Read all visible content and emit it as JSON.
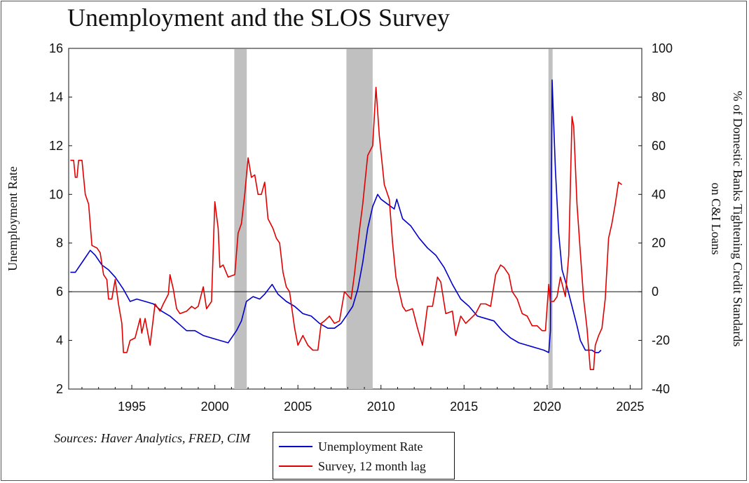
{
  "title": "Unemployment and the SLOS Survey",
  "source_text": "Sources:  Haver Analytics, FRED, CIM",
  "chart_data": {
    "type": "line",
    "title": "Unemployment and the SLOS Survey",
    "xlim": [
      1991.2,
      2025.7
    ],
    "x_ticks": [
      1995,
      2000,
      2005,
      2010,
      2015,
      2020,
      2025
    ],
    "left_axis": {
      "label": "Unemployment Rate",
      "lim": [
        2,
        16
      ],
      "ticks": [
        2,
        4,
        6,
        8,
        10,
        12,
        14,
        16
      ]
    },
    "right_axis": {
      "label_line1": "% of Domestic Banks Tightening Credit Standards",
      "label_line2": "on C&I Loans",
      "lim": [
        -40,
        100
      ],
      "ticks": [
        -40,
        -20,
        0,
        20,
        40,
        60,
        80,
        100
      ]
    },
    "zero_line": 0,
    "recessions": [
      [
        2001.17,
        2001.92
      ],
      [
        2007.92,
        2009.5
      ],
      [
        2020.08,
        2020.33
      ]
    ],
    "legend_position": "bottom-center",
    "series": [
      {
        "name": "Unemployment Rate",
        "axis": "left",
        "color": "#0000cc",
        "points": [
          [
            1991.3,
            6.8
          ],
          [
            1991.6,
            6.8
          ],
          [
            1992.0,
            7.2
          ],
          [
            1992.5,
            7.7
          ],
          [
            1992.8,
            7.5
          ],
          [
            1993.2,
            7.1
          ],
          [
            1993.6,
            6.9
          ],
          [
            1994.0,
            6.6
          ],
          [
            1994.5,
            6.1
          ],
          [
            1994.9,
            5.6
          ],
          [
            1995.3,
            5.7
          ],
          [
            1995.8,
            5.6
          ],
          [
            1996.3,
            5.5
          ],
          [
            1996.8,
            5.2
          ],
          [
            1997.3,
            5.0
          ],
          [
            1997.8,
            4.7
          ],
          [
            1998.3,
            4.4
          ],
          [
            1998.8,
            4.4
          ],
          [
            1999.3,
            4.2
          ],
          [
            1999.8,
            4.1
          ],
          [
            2000.3,
            4.0
          ],
          [
            2000.8,
            3.9
          ],
          [
            2001.0,
            4.1
          ],
          [
            2001.3,
            4.4
          ],
          [
            2001.6,
            4.8
          ],
          [
            2001.9,
            5.6
          ],
          [
            2002.3,
            5.8
          ],
          [
            2002.7,
            5.7
          ],
          [
            2003.0,
            5.9
          ],
          [
            2003.45,
            6.3
          ],
          [
            2003.8,
            5.9
          ],
          [
            2004.3,
            5.6
          ],
          [
            2004.8,
            5.4
          ],
          [
            2005.3,
            5.1
          ],
          [
            2005.8,
            5.0
          ],
          [
            2006.3,
            4.7
          ],
          [
            2006.8,
            4.5
          ],
          [
            2007.2,
            4.5
          ],
          [
            2007.6,
            4.7
          ],
          [
            2007.9,
            5.0
          ],
          [
            2008.3,
            5.4
          ],
          [
            2008.6,
            6.1
          ],
          [
            2008.9,
            7.2
          ],
          [
            2009.2,
            8.6
          ],
          [
            2009.5,
            9.5
          ],
          [
            2009.8,
            10.0
          ],
          [
            2010.0,
            9.8
          ],
          [
            2010.4,
            9.6
          ],
          [
            2010.8,
            9.4
          ],
          [
            2010.95,
            9.8
          ],
          [
            2011.3,
            9.0
          ],
          [
            2011.8,
            8.7
          ],
          [
            2012.3,
            8.2
          ],
          [
            2012.8,
            7.8
          ],
          [
            2013.3,
            7.5
          ],
          [
            2013.8,
            7.0
          ],
          [
            2014.3,
            6.3
          ],
          [
            2014.8,
            5.7
          ],
          [
            2015.3,
            5.4
          ],
          [
            2015.8,
            5.0
          ],
          [
            2016.3,
            4.9
          ],
          [
            2016.8,
            4.8
          ],
          [
            2017.3,
            4.4
          ],
          [
            2017.8,
            4.1
          ],
          [
            2018.3,
            3.9
          ],
          [
            2018.8,
            3.8
          ],
          [
            2019.3,
            3.7
          ],
          [
            2019.8,
            3.6
          ],
          [
            2020.1,
            3.5
          ],
          [
            2020.2,
            4.4
          ],
          [
            2020.3,
            14.7
          ],
          [
            2020.5,
            11.0
          ],
          [
            2020.7,
            8.4
          ],
          [
            2020.9,
            6.9
          ],
          [
            2021.2,
            6.2
          ],
          [
            2021.5,
            5.4
          ],
          [
            2021.8,
            4.6
          ],
          [
            2022.0,
            4.0
          ],
          [
            2022.3,
            3.6
          ],
          [
            2022.7,
            3.6
          ],
          [
            2022.9,
            3.5
          ],
          [
            2023.1,
            3.5
          ],
          [
            2023.25,
            3.6
          ]
        ]
      },
      {
        "name": "Survey, 12 month lag",
        "axis": "right",
        "color": "#e00000",
        "points": [
          [
            1991.3,
            54
          ],
          [
            1991.5,
            54
          ],
          [
            1991.6,
            47
          ],
          [
            1991.7,
            47
          ],
          [
            1991.8,
            54
          ],
          [
            1992.0,
            54
          ],
          [
            1992.2,
            40
          ],
          [
            1992.4,
            36
          ],
          [
            1992.6,
            19
          ],
          [
            1992.9,
            18
          ],
          [
            1993.1,
            16
          ],
          [
            1993.3,
            7
          ],
          [
            1993.5,
            5
          ],
          [
            1993.6,
            -3
          ],
          [
            1993.8,
            -3
          ],
          [
            1994.0,
            5
          ],
          [
            1994.2,
            -5
          ],
          [
            1994.4,
            -13
          ],
          [
            1994.5,
            -25
          ],
          [
            1994.7,
            -25
          ],
          [
            1994.9,
            -20
          ],
          [
            1995.2,
            -19
          ],
          [
            1995.5,
            -11
          ],
          [
            1995.6,
            -17
          ],
          [
            1995.8,
            -11
          ],
          [
            1996.1,
            -22
          ],
          [
            1996.4,
            -5
          ],
          [
            1996.7,
            -8
          ],
          [
            1996.9,
            -5
          ],
          [
            1997.2,
            -1
          ],
          [
            1997.3,
            7
          ],
          [
            1997.5,
            1
          ],
          [
            1997.7,
            -7
          ],
          [
            1997.9,
            -9
          ],
          [
            1998.3,
            -8
          ],
          [
            1998.6,
            -6
          ],
          [
            1998.8,
            -7
          ],
          [
            1999.0,
            -6
          ],
          [
            1999.3,
            2
          ],
          [
            1999.5,
            -7
          ],
          [
            1999.8,
            -4
          ],
          [
            2000.0,
            37
          ],
          [
            2000.2,
            26
          ],
          [
            2000.3,
            10
          ],
          [
            2000.5,
            11
          ],
          [
            2000.8,
            6
          ],
          [
            2001.2,
            7
          ],
          [
            2001.4,
            24
          ],
          [
            2001.6,
            28
          ],
          [
            2001.8,
            40
          ],
          [
            2002.0,
            55
          ],
          [
            2002.2,
            47
          ],
          [
            2002.4,
            48
          ],
          [
            2002.6,
            40
          ],
          [
            2002.8,
            40
          ],
          [
            2003.0,
            45
          ],
          [
            2003.2,
            30
          ],
          [
            2003.5,
            26
          ],
          [
            2003.7,
            22
          ],
          [
            2003.9,
            20
          ],
          [
            2004.1,
            8
          ],
          [
            2004.3,
            2
          ],
          [
            2004.5,
            0
          ],
          [
            2004.8,
            -15
          ],
          [
            2005.0,
            -22
          ],
          [
            2005.3,
            -18
          ],
          [
            2005.6,
            -22
          ],
          [
            2005.9,
            -24
          ],
          [
            2006.2,
            -24
          ],
          [
            2006.4,
            -13
          ],
          [
            2006.6,
            -12
          ],
          [
            2006.9,
            -10
          ],
          [
            2007.2,
            -13
          ],
          [
            2007.5,
            -12
          ],
          [
            2007.8,
            0
          ],
          [
            2008.2,
            -3
          ],
          [
            2008.4,
            7
          ],
          [
            2008.7,
            25
          ],
          [
            2008.9,
            36
          ],
          [
            2009.2,
            56
          ],
          [
            2009.5,
            60
          ],
          [
            2009.7,
            84
          ],
          [
            2009.9,
            64
          ],
          [
            2010.2,
            44
          ],
          [
            2010.5,
            38
          ],
          [
            2010.7,
            20
          ],
          [
            2010.9,
            6
          ],
          [
            2011.3,
            -6
          ],
          [
            2011.5,
            -8
          ],
          [
            2011.9,
            -7
          ],
          [
            2012.2,
            -15
          ],
          [
            2012.5,
            -22
          ],
          [
            2012.8,
            -6
          ],
          [
            2013.1,
            -6
          ],
          [
            2013.4,
            6
          ],
          [
            2013.6,
            4
          ],
          [
            2013.9,
            -9
          ],
          [
            2014.3,
            -8
          ],
          [
            2014.5,
            -18
          ],
          [
            2014.8,
            -10
          ],
          [
            2015.1,
            -13
          ],
          [
            2015.4,
            -11
          ],
          [
            2015.7,
            -9
          ],
          [
            2016.0,
            -5
          ],
          [
            2016.3,
            -5
          ],
          [
            2016.6,
            -6
          ],
          [
            2016.9,
            7
          ],
          [
            2017.2,
            11
          ],
          [
            2017.4,
            10
          ],
          [
            2017.7,
            7
          ],
          [
            2017.9,
            0
          ],
          [
            2018.2,
            -3
          ],
          [
            2018.5,
            -9
          ],
          [
            2018.8,
            -10
          ],
          [
            2019.1,
            -14
          ],
          [
            2019.4,
            -14
          ],
          [
            2019.7,
            -16
          ],
          [
            2019.9,
            -16
          ],
          [
            2020.1,
            3
          ],
          [
            2020.2,
            -4
          ],
          [
            2020.4,
            -4
          ],
          [
            2020.6,
            -2
          ],
          [
            2020.8,
            6
          ],
          [
            2021.1,
            -2
          ],
          [
            2021.3,
            15
          ],
          [
            2021.5,
            72
          ],
          [
            2021.6,
            68
          ],
          [
            2021.8,
            36
          ],
          [
            2022.0,
            16
          ],
          [
            2022.2,
            -3
          ],
          [
            2022.4,
            -15
          ],
          [
            2022.6,
            -32
          ],
          [
            2022.8,
            -32
          ],
          [
            2022.9,
            -22
          ],
          [
            2023.1,
            -18
          ],
          [
            2023.3,
            -15
          ],
          [
            2023.5,
            -3
          ],
          [
            2023.7,
            22
          ],
          [
            2023.9,
            28
          ],
          [
            2024.1,
            36
          ],
          [
            2024.3,
            45
          ],
          [
            2024.5,
            44
          ]
        ]
      }
    ]
  }
}
